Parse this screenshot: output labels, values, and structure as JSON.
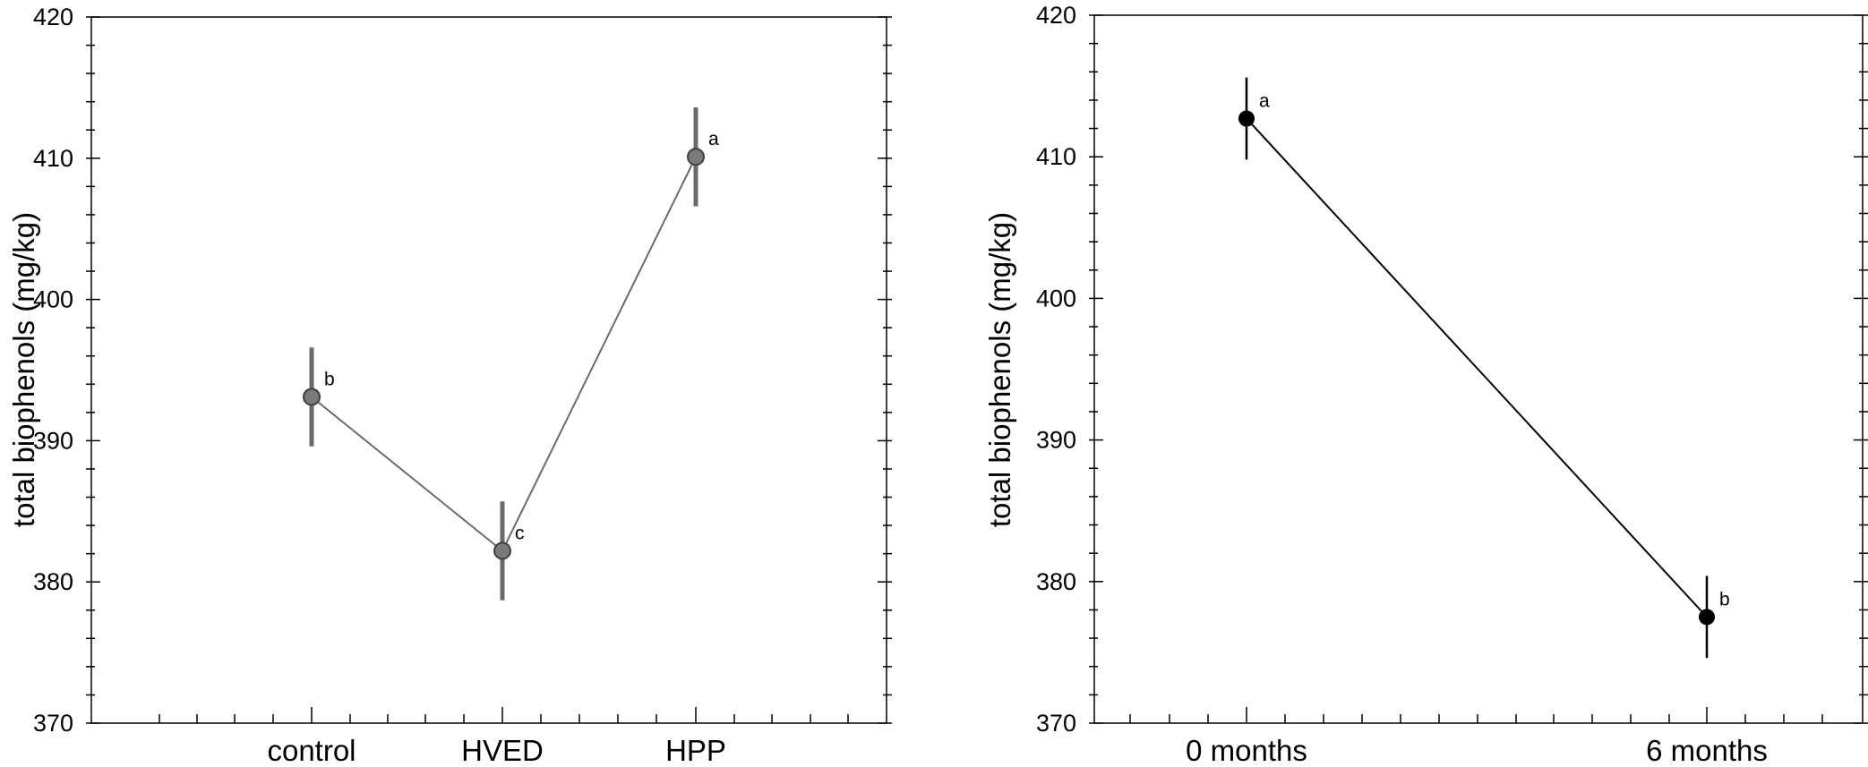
{
  "chart_data": [
    {
      "type": "line",
      "title": "",
      "xlabel": "",
      "ylabel": "total biophenols (mg/kg)",
      "ylim": [
        370,
        420
      ],
      "yticks": [
        370,
        380,
        390,
        400,
        410,
        420
      ],
      "categories": [
        "control",
        "HVED",
        "HPP"
      ],
      "values": [
        393.1,
        382.2,
        410.1
      ],
      "error_low": [
        389.6,
        378.7,
        406.6
      ],
      "error_high": [
        396.6,
        385.7,
        413.6
      ],
      "letters": [
        "b",
        "c",
        "a"
      ],
      "grid": false,
      "line_color": "#6b6b6b",
      "marker_color": "#7a7a7a"
    },
    {
      "type": "line",
      "title": "",
      "xlabel": "",
      "ylabel": "total biophenols (mg/kg)",
      "ylim": [
        370,
        420
      ],
      "yticks": [
        370,
        380,
        390,
        400,
        410,
        420
      ],
      "categories": [
        "0 months",
        "6 months"
      ],
      "values": [
        412.7,
        377.5
      ],
      "error_low": [
        409.8,
        374.6
      ],
      "error_high": [
        415.6,
        380.4
      ],
      "letters": [
        "a",
        "b"
      ],
      "grid": false,
      "line_color": "#000000",
      "marker_color": "#000000"
    }
  ]
}
